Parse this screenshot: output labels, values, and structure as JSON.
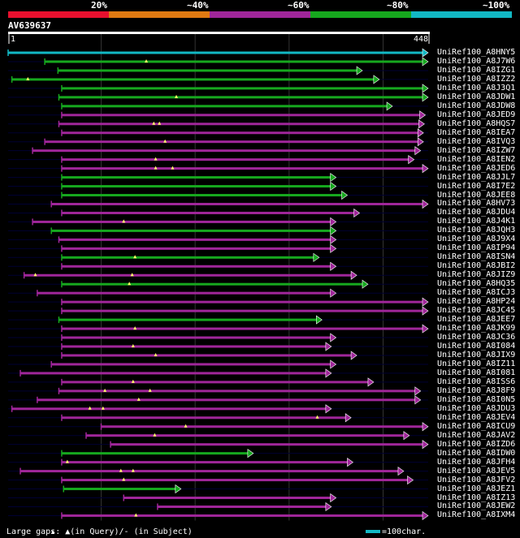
{
  "colors": {
    "background": "#000000",
    "q20": "#e8102e",
    "q40": "#e07a12",
    "q60": "#a0269a",
    "q80": "#16a81e",
    "q100": "#12b8c4",
    "grid": "#333333",
    "query_line": "#000033",
    "ruler": "#ffffff"
  },
  "legend": {
    "items": [
      {
        "label": "20%",
        "color": "#e8102e"
      },
      {
        "label": "~40%",
        "color": "#e07a12"
      },
      {
        "label": "~60%",
        "color": "#a0269a"
      },
      {
        "label": "~80%",
        "color": "#16a81e"
      },
      {
        "label": "~100%",
        "color": "#12b8c4"
      }
    ]
  },
  "query": {
    "id": "AV639637",
    "start": "1",
    "end": "448",
    "length": 448
  },
  "footer": {
    "large_gaps": "Large gaps: ▲(in Query)/- (in Subject)",
    "scale": "=100char."
  },
  "hits": [
    {
      "name": "UniRef100_A8HNY5",
      "color": "q100",
      "start": 1,
      "end": 448,
      "gaps": []
    },
    {
      "name": "UniRef100_A8J7W6",
      "color": "q80",
      "start": 40,
      "end": 448,
      "gaps": [
        148
      ]
    },
    {
      "name": "UniRef100_A8IZG1",
      "color": "q80",
      "start": 54,
      "end": 378,
      "gaps": []
    },
    {
      "name": "UniRef100_A8IZZ2",
      "color": "q80",
      "start": 5,
      "end": 396,
      "gaps": [
        22
      ]
    },
    {
      "name": "UniRef100_A8J3Q1",
      "color": "q80",
      "start": 58,
      "end": 448,
      "gaps": []
    },
    {
      "name": "UniRef100_A8JDW1",
      "color": "q80",
      "start": 55,
      "end": 448,
      "gaps": [
        180
      ]
    },
    {
      "name": "UniRef100_A8JDW8",
      "color": "q80",
      "start": 58,
      "end": 410,
      "gaps": []
    },
    {
      "name": "UniRef100_A8JED9",
      "color": "q60",
      "start": 58,
      "end": 445,
      "gaps": []
    },
    {
      "name": "UniRef100_A8HQS7",
      "color": "q60",
      "start": 55,
      "end": 444,
      "gaps": [
        156,
        162
      ]
    },
    {
      "name": "UniRef100_A8IEA7",
      "color": "q60",
      "start": 58,
      "end": 443,
      "gaps": []
    },
    {
      "name": "UniRef100_A8IVQ3",
      "color": "q60",
      "start": 40,
      "end": 443,
      "gaps": [
        168
      ]
    },
    {
      "name": "UniRef100_A8IZW7",
      "color": "q60",
      "start": 27,
      "end": 440,
      "gaps": []
    },
    {
      "name": "UniRef100_A8IEN2",
      "color": "q60",
      "start": 58,
      "end": 433,
      "gaps": [
        158
      ]
    },
    {
      "name": "UniRef100_A8JED6",
      "color": "q60",
      "start": 58,
      "end": 448,
      "gaps": [
        158,
        176
      ]
    },
    {
      "name": "UniRef100_A8JJL7",
      "color": "q80",
      "start": 58,
      "end": 350,
      "gaps": []
    },
    {
      "name": "UniRef100_A8I7E2",
      "color": "q80",
      "start": 58,
      "end": 350,
      "gaps": []
    },
    {
      "name": "UniRef100_A8JEE8",
      "color": "q80",
      "start": 58,
      "end": 362,
      "gaps": []
    },
    {
      "name": "UniRef100_A8HV73",
      "color": "q60",
      "start": 47,
      "end": 448,
      "gaps": []
    },
    {
      "name": "UniRef100_A8JDU4",
      "color": "q60",
      "start": 58,
      "end": 375,
      "gaps": []
    },
    {
      "name": "UniRef100_A8J4K1",
      "color": "q60",
      "start": 27,
      "end": 350,
      "gaps": [
        124
      ]
    },
    {
      "name": "UniRef100_A8JQH3",
      "color": "q80",
      "start": 47,
      "end": 350,
      "gaps": []
    },
    {
      "name": "UniRef100_A8J9X4",
      "color": "q60",
      "start": 55,
      "end": 350,
      "gaps": []
    },
    {
      "name": "UniRef100_A8IP94",
      "color": "q60",
      "start": 58,
      "end": 350,
      "gaps": []
    },
    {
      "name": "UniRef100_A8ISN4",
      "color": "q80",
      "start": 58,
      "end": 332,
      "gaps": [
        136
      ]
    },
    {
      "name": "UniRef100_A8JBI2",
      "color": "q60",
      "start": 58,
      "end": 350,
      "gaps": []
    },
    {
      "name": "UniRef100_A8JIZ9",
      "color": "q60",
      "start": 18,
      "end": 372,
      "gaps": [
        30,
        133
      ]
    },
    {
      "name": "UniRef100_A8HQ35",
      "color": "q80",
      "start": 58,
      "end": 384,
      "gaps": [
        130
      ]
    },
    {
      "name": "UniRef100_A8ICJ3",
      "color": "q60",
      "start": 32,
      "end": 350,
      "gaps": []
    },
    {
      "name": "UniRef100_A8HP24",
      "color": "q60",
      "start": 58,
      "end": 448,
      "gaps": []
    },
    {
      "name": "UniRef100_A8JC45",
      "color": "q60",
      "start": 58,
      "end": 448,
      "gaps": []
    },
    {
      "name": "UniRef100_A8JEE7",
      "color": "q80",
      "start": 55,
      "end": 335,
      "gaps": []
    },
    {
      "name": "UniRef100_A8JK99",
      "color": "q60",
      "start": 58,
      "end": 448,
      "gaps": [
        136
      ]
    },
    {
      "name": "UniRef100_A8JC36",
      "color": "q60",
      "start": 58,
      "end": 350,
      "gaps": []
    },
    {
      "name": "UniRef100_A8I084",
      "color": "q60",
      "start": 58,
      "end": 345,
      "gaps": [
        134
      ]
    },
    {
      "name": "UniRef100_A8JIX9",
      "color": "q60",
      "start": 58,
      "end": 372,
      "gaps": [
        158
      ]
    },
    {
      "name": "UniRef100_A8IZ11",
      "color": "q60",
      "start": 47,
      "end": 350,
      "gaps": []
    },
    {
      "name": "UniRef100_A8I081",
      "color": "q60",
      "start": 14,
      "end": 345,
      "gaps": []
    },
    {
      "name": "UniRef100_A8ISS6",
      "color": "q60",
      "start": 58,
      "end": 390,
      "gaps": [
        134
      ]
    },
    {
      "name": "UniRef100_A8J8F9",
      "color": "q60",
      "start": 55,
      "end": 440,
      "gaps": [
        104,
        152
      ]
    },
    {
      "name": "UniRef100_A8I0N5",
      "color": "q60",
      "start": 32,
      "end": 440,
      "gaps": [
        140
      ]
    },
    {
      "name": "UniRef100_A8JDU3",
      "color": "q60",
      "start": 5,
      "end": 345,
      "gaps": [
        88,
        102
      ]
    },
    {
      "name": "UniRef100_A8JEV4",
      "color": "q60",
      "start": 58,
      "end": 366,
      "gaps": [
        330
      ]
    },
    {
      "name": "UniRef100_A8ICU9",
      "color": "q60",
      "start": 100,
      "end": 448,
      "gaps": [
        190
      ]
    },
    {
      "name": "UniRef100_A8JAV2",
      "color": "q60",
      "start": 84,
      "end": 428,
      "gaps": [
        157
      ]
    },
    {
      "name": "UniRef100_A8IZD6",
      "color": "q60",
      "start": 110,
      "end": 448,
      "gaps": []
    },
    {
      "name": "UniRef100_A8IDW0",
      "color": "q80",
      "start": 58,
      "end": 262,
      "gaps": []
    },
    {
      "name": "UniRef100_A8JFH4",
      "color": "q60",
      "start": 58,
      "end": 368,
      "gaps": [
        64
      ]
    },
    {
      "name": "UniRef100_A8JEV5",
      "color": "q60",
      "start": 14,
      "end": 422,
      "gaps": [
        121,
        134
      ]
    },
    {
      "name": "UniRef100_A8JFV2",
      "color": "q60",
      "start": 58,
      "end": 432,
      "gaps": [
        124
      ]
    },
    {
      "name": "UniRef100_A8JEZ1",
      "color": "q80",
      "start": 60,
      "end": 185,
      "gaps": []
    },
    {
      "name": "UniRef100_A8IZ13",
      "color": "q60",
      "start": 124,
      "end": 350,
      "gaps": []
    },
    {
      "name": "UniRef100_A8JEW2",
      "color": "q60",
      "start": 160,
      "end": 345,
      "gaps": []
    },
    {
      "name": "UniRef100_A8IXM4",
      "color": "q60",
      "start": 58,
      "end": 448,
      "gaps": [
        137
      ]
    }
  ]
}
